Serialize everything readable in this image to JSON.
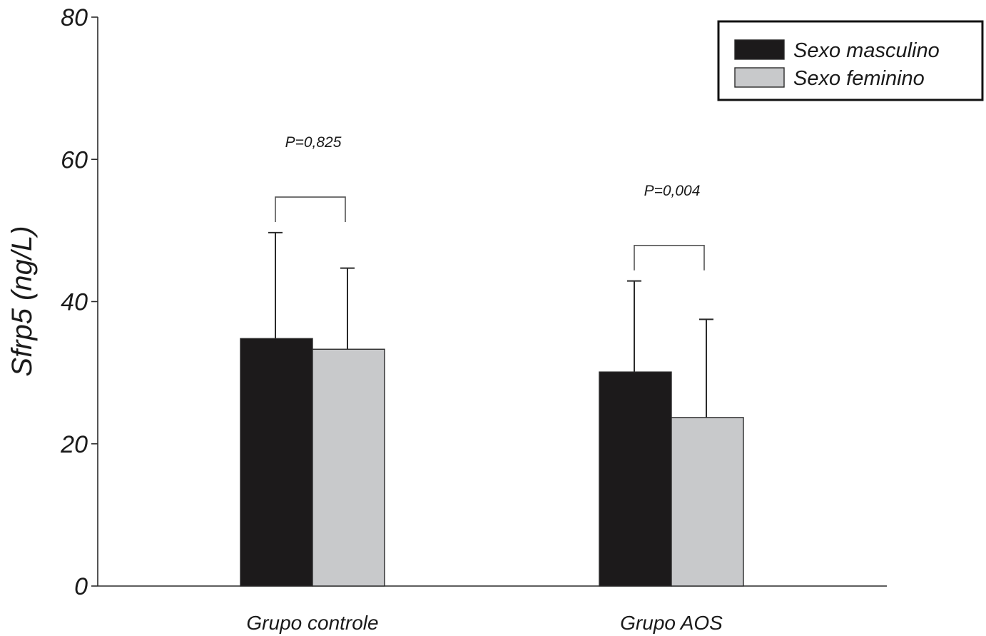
{
  "chart_data": {
    "type": "bar",
    "ylabel": "Sfrp5 (ng/L)",
    "ylim": [
      0,
      80
    ],
    "yticks": [
      0,
      20,
      40,
      60,
      80
    ],
    "categories": [
      "Grupo controle",
      "Grupo AOS"
    ],
    "series": [
      {
        "name": "Sexo masculino",
        "color": "#1c1a1b",
        "values": [
          34.8,
          30.1
        ],
        "errors": [
          14.9,
          12.8
        ]
      },
      {
        "name": "Sexo feminino",
        "color": "#c8c9cb",
        "values": [
          33.3,
          23.7
        ],
        "errors": [
          11.4,
          13.8
        ]
      }
    ],
    "annotations": [
      {
        "category": "Grupo controle",
        "text": "P=0,825",
        "bracket_y": 54.7
      },
      {
        "category": "Grupo AOS",
        "text": "P=0,004",
        "bracket_y": 47.9
      }
    ],
    "legend_position": "top-right",
    "grid": false
  }
}
